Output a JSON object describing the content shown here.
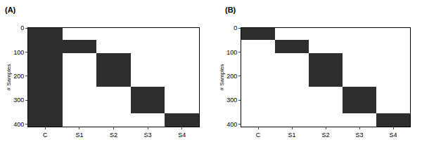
{
  "chart_data": [
    {
      "type": "bar",
      "title": "(A)",
      "y_label": "# Samples",
      "categories": [
        "C",
        "S1",
        "S2",
        "S3",
        "S4"
      ],
      "start": [
        0,
        50,
        105,
        245,
        355
      ],
      "end": [
        410,
        105,
        245,
        355,
        410
      ],
      "color": "#2e2e2e",
      "ylim": [
        0,
        410
      ],
      "yticks": [
        0,
        100,
        200,
        300,
        400
      ],
      "grid": false
    },
    {
      "type": "bar",
      "title": "(B)",
      "y_label": "# Samples",
      "categories": [
        "C",
        "S1",
        "S2",
        "S3",
        "S4"
      ],
      "start": [
        0,
        50,
        105,
        245,
        355
      ],
      "end": [
        50,
        105,
        245,
        355,
        410
      ],
      "color": "#2e2e2e",
      "ylim": [
        0,
        410
      ],
      "yticks": [
        0,
        100,
        200,
        300,
        400
      ],
      "grid": false
    }
  ]
}
